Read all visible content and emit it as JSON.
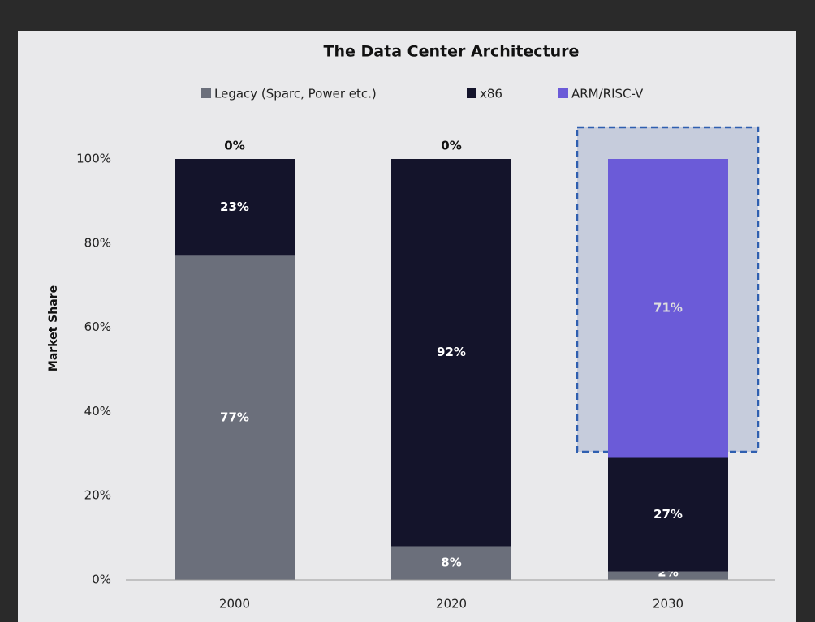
{
  "chart_data": {
    "type": "stacked_bar",
    "title": "The Data Center Architecture",
    "ylabel": "Market Share",
    "categories": [
      "2000",
      "2020",
      "2030"
    ],
    "series": [
      {
        "name": "Legacy (Sparc, Power etc.)",
        "color": "#6b6f7b",
        "values": [
          77,
          8,
          2
        ],
        "value_labels": [
          "77%",
          "8%",
          "2%"
        ]
      },
      {
        "name": "x86",
        "color": "#14142b",
        "values": [
          23,
          92,
          27
        ],
        "value_labels": [
          "23%",
          "92%",
          "27%"
        ]
      },
      {
        "name": "ARM/RISC-V",
        "color": "#6b5bd8",
        "values": [
          0,
          0,
          71
        ],
        "value_labels": [
          "0%",
          "0%",
          "71%"
        ]
      }
    ],
    "ylim": [
      0,
      100
    ],
    "yticks": [
      {
        "value": 0,
        "label": "0%"
      },
      {
        "value": 20,
        "label": "20%"
      },
      {
        "value": 40,
        "label": "40%"
      },
      {
        "value": 60,
        "label": "60%"
      },
      {
        "value": 80,
        "label": "80%"
      },
      {
        "value": 100,
        "label": "100%"
      }
    ],
    "legend": "top"
  }
}
